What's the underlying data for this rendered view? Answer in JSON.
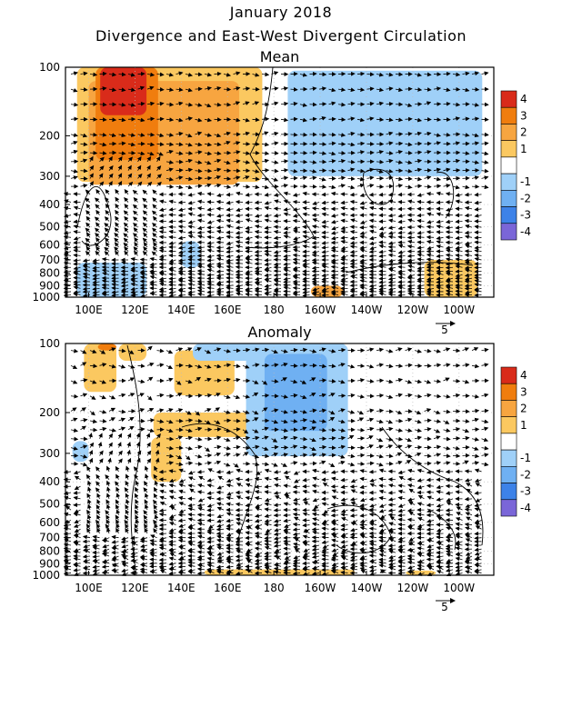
{
  "header": {
    "title": "January 2018",
    "subtitle": "Divergence and East-West Divergent Circulation"
  },
  "colors": {
    "4": "#d92b1a",
    "3": "#f07d0e",
    "2": "#f7a540",
    "1": "#fbc860",
    "-1": "#9fd0f8",
    "-2": "#6fb0f2",
    "-3": "#3d82e8",
    "-4": "#7a66d8"
  },
  "chart_data": [
    {
      "type": "heatmap",
      "title": "Mean",
      "x_ticks": [
        "100E",
        "120E",
        "140E",
        "160E",
        "180",
        "160W",
        "140W",
        "120W",
        "100W"
      ],
      "y_ticks": [
        "100",
        "200",
        "300",
        "400",
        "500",
        "600",
        "700",
        "800",
        "900",
        "1000"
      ],
      "y_scale": "pressure (inverted, log-like)",
      "colorbar": {
        "labels": [
          "4",
          "3",
          "2",
          "1",
          "-1",
          "-2",
          "-3",
          "-4"
        ]
      },
      "vector_reference": "5",
      "regions": [
        {
          "lon": [
            95,
            175
          ],
          "p": [
            100,
            320
          ],
          "level": 1
        },
        {
          "lon": [
            100,
            165
          ],
          "p": [
            120,
            330
          ],
          "level": 2
        },
        {
          "lon": [
            103,
            130
          ],
          "p": [
            100,
            260
          ],
          "level": 3
        },
        {
          "lon": [
            105,
            125
          ],
          "p": [
            100,
            170
          ],
          "level": 4
        },
        {
          "lon": [
            186,
            270
          ],
          "p": [
            105,
            300
          ],
          "level": -1
        },
        {
          "lon": [
            95,
            125
          ],
          "p": [
            720,
            1000
          ],
          "level": -1
        },
        {
          "lon": [
            140,
            148
          ],
          "p": [
            580,
            760
          ],
          "level": -1
        },
        {
          "lon": [
            245,
            268
          ],
          "p": [
            700,
            1000
          ],
          "level": 1
        },
        {
          "lon": [
            196,
            210
          ],
          "p": [
            900,
            1000
          ],
          "level": 2
        }
      ]
    },
    {
      "type": "heatmap",
      "title": "Anomaly",
      "x_ticks": [
        "100E",
        "120E",
        "140E",
        "160E",
        "180",
        "160W",
        "140W",
        "120W",
        "100W"
      ],
      "y_ticks": [
        "100",
        "200",
        "300",
        "400",
        "500",
        "600",
        "700",
        "800",
        "900",
        "1000"
      ],
      "y_scale": "pressure (inverted, log-like)",
      "colorbar": {
        "labels": [
          "4",
          "3",
          "2",
          "1",
          "-1",
          "-2",
          "-3",
          "-4"
        ]
      },
      "vector_reference": "5",
      "regions": [
        {
          "lon": [
            98,
            112
          ],
          "p": [
            100,
            170
          ],
          "level": 1
        },
        {
          "lon": [
            104,
            112
          ],
          "p": [
            100,
            110
          ],
          "level": 3
        },
        {
          "lon": [
            113,
            125
          ],
          "p": [
            100,
            125
          ],
          "level": 1
        },
        {
          "lon": [
            137,
            163
          ],
          "p": [
            110,
            175
          ],
          "level": 1
        },
        {
          "lon": [
            127,
            140
          ],
          "p": [
            260,
            400
          ],
          "level": 1
        },
        {
          "lon": [
            128,
            172
          ],
          "p": [
            200,
            260
          ],
          "level": 1
        },
        {
          "lon": [
            168,
            212
          ],
          "p": [
            100,
            310
          ],
          "level": -1
        },
        {
          "lon": [
            176,
            203
          ],
          "p": [
            115,
            245
          ],
          "level": -2
        },
        {
          "lon": [
            145,
            172
          ],
          "p": [
            100,
            125
          ],
          "level": -1
        },
        {
          "lon": [
            93,
            100
          ],
          "p": [
            270,
            330
          ],
          "level": -1
        },
        {
          "lon": [
            150,
            215
          ],
          "p": [
            950,
            1000
          ],
          "level": 1
        },
        {
          "lon": [
            237,
            250
          ],
          "p": [
            960,
            1000
          ],
          "level": 1
        }
      ]
    }
  ]
}
